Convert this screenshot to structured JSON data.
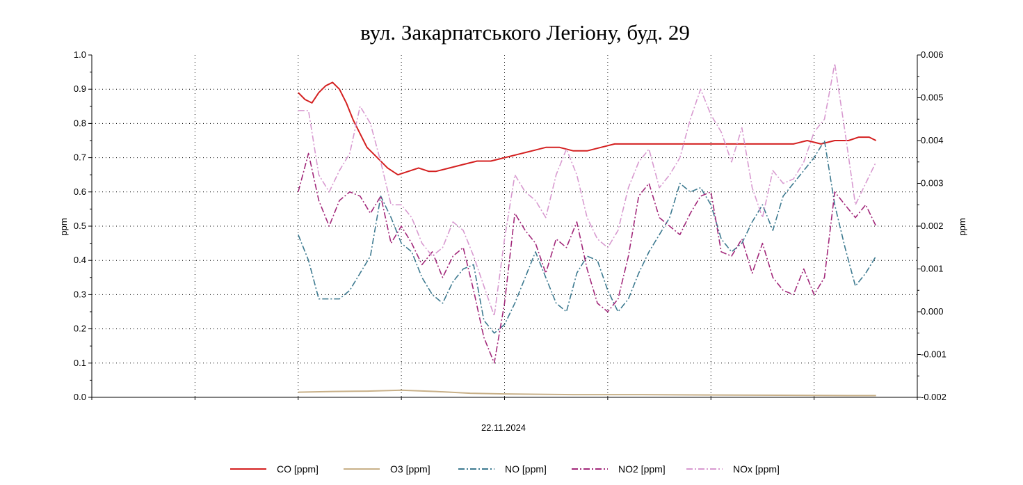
{
  "chart_data": {
    "type": "line",
    "title": "вул. Закарпатського Легіону, буд. 29",
    "xlabel": "22.11.2024",
    "ylabel_left": "ppm",
    "ylabel_right": "ppm",
    "ylim_left": [
      0,
      1
    ],
    "ylim_right": [
      -0.002,
      0.006
    ],
    "yticks_left": [
      "0.0",
      "0.1",
      "0.2",
      "0.3",
      "0.4",
      "0.5",
      "0.6",
      "0.7",
      "0.8",
      "0.9",
      "1.0"
    ],
    "yticks_right": [
      "-0.002",
      "-0.001",
      "0.000",
      "0.001",
      "0.002",
      "0.003",
      "0.004",
      "0.005",
      "0.006"
    ],
    "x_units": "hours",
    "x_range": [
      0,
      24
    ],
    "grid": true,
    "legend_position": "bottom",
    "series": [
      {
        "name": "CO [ppm]",
        "axis": "left",
        "color": "#d42020",
        "style": "solid",
        "x": [
          6.0,
          6.2,
          6.4,
          6.6,
          6.8,
          7.0,
          7.2,
          7.4,
          7.6,
          7.8,
          8.0,
          8.3,
          8.6,
          8.9,
          9.2,
          9.5,
          9.8,
          10.0,
          10.4,
          10.8,
          11.2,
          11.6,
          12.0,
          12.4,
          12.8,
          13.2,
          13.6,
          14.0,
          14.4,
          14.8,
          15.2,
          15.6,
          16.0,
          16.4,
          16.8,
          17.2,
          17.6,
          18.0,
          18.4,
          18.8,
          19.2,
          19.6,
          20.0,
          20.4,
          20.8,
          21.2,
          21.6,
          22.0,
          22.3,
          22.6,
          22.8
        ],
        "values": [
          0.89,
          0.87,
          0.86,
          0.89,
          0.91,
          0.92,
          0.9,
          0.86,
          0.81,
          0.77,
          0.73,
          0.7,
          0.67,
          0.65,
          0.66,
          0.67,
          0.66,
          0.66,
          0.67,
          0.68,
          0.69,
          0.69,
          0.7,
          0.71,
          0.72,
          0.73,
          0.73,
          0.72,
          0.72,
          0.73,
          0.74,
          0.74,
          0.74,
          0.74,
          0.74,
          0.74,
          0.74,
          0.74,
          0.74,
          0.74,
          0.74,
          0.74,
          0.74,
          0.74,
          0.75,
          0.74,
          0.75,
          0.75,
          0.76,
          0.76,
          0.75
        ]
      },
      {
        "name": "O3 [ppm]",
        "axis": "left",
        "color": "#c8b088",
        "style": "solid",
        "x": [
          6.0,
          7.0,
          8.0,
          9.0,
          10.0,
          11.0,
          12.0,
          14.0,
          16.0,
          18.0,
          20.0,
          22.0,
          22.8
        ],
        "values": [
          0.015,
          0.017,
          0.018,
          0.021,
          0.017,
          0.012,
          0.01,
          0.008,
          0.008,
          0.007,
          0.006,
          0.005,
          0.005
        ]
      },
      {
        "name": "NO [ppm]",
        "axis": "right",
        "color": "#3d7a90",
        "style": "dashdot",
        "x": [
          6.0,
          6.3,
          6.6,
          6.9,
          7.2,
          7.5,
          7.8,
          8.1,
          8.4,
          8.7,
          9.0,
          9.3,
          9.6,
          9.9,
          10.2,
          10.5,
          10.8,
          11.1,
          11.4,
          11.7,
          12.0,
          12.3,
          12.6,
          12.9,
          13.2,
          13.5,
          13.8,
          14.1,
          14.4,
          14.7,
          15.0,
          15.3,
          15.6,
          15.9,
          16.2,
          16.5,
          16.8,
          17.1,
          17.4,
          17.7,
          18.0,
          18.3,
          18.6,
          18.9,
          19.2,
          19.5,
          19.8,
          20.1,
          20.4,
          20.7,
          21.0,
          21.3,
          21.6,
          21.9,
          22.2,
          22.5,
          22.8
        ],
        "values": [
          0.0018,
          0.0012,
          0.0003,
          0.0003,
          0.0003,
          0.0005,
          0.0009,
          0.0013,
          0.0027,
          0.0022,
          0.0016,
          0.0014,
          0.0008,
          0.0004,
          0.0002,
          0.0007,
          0.001,
          0.0011,
          -0.0002,
          -0.0005,
          -0.0003,
          0.0002,
          0.0008,
          0.0014,
          0.0008,
          0.0002,
          0.0,
          0.0009,
          0.0013,
          0.0012,
          0.0005,
          0.0,
          0.0003,
          0.0009,
          0.0014,
          0.0018,
          0.0022,
          0.003,
          0.0028,
          0.0029,
          0.0025,
          0.0017,
          0.0014,
          0.0016,
          0.0021,
          0.0025,
          0.0019,
          0.0027,
          0.003,
          0.0033,
          0.0036,
          0.004,
          0.0025,
          0.0015,
          0.0006,
          0.0009,
          0.0013
        ]
      },
      {
        "name": "NO2 [ppm]",
        "axis": "right",
        "color": "#a2287a",
        "style": "dashdot",
        "x": [
          6.0,
          6.3,
          6.6,
          6.9,
          7.2,
          7.5,
          7.8,
          8.1,
          8.4,
          8.7,
          9.0,
          9.3,
          9.6,
          9.9,
          10.2,
          10.5,
          10.8,
          11.1,
          11.4,
          11.7,
          12.0,
          12.3,
          12.6,
          12.9,
          13.2,
          13.5,
          13.8,
          14.1,
          14.4,
          14.7,
          15.0,
          15.3,
          15.6,
          15.9,
          16.2,
          16.5,
          16.8,
          17.1,
          17.4,
          17.7,
          18.0,
          18.3,
          18.6,
          18.9,
          19.2,
          19.5,
          19.8,
          20.1,
          20.4,
          20.7,
          21.0,
          21.3,
          21.6,
          21.9,
          22.2,
          22.5,
          22.8
        ],
        "values": [
          0.0028,
          0.0037,
          0.0026,
          0.002,
          0.0026,
          0.0028,
          0.0027,
          0.0023,
          0.0027,
          0.0016,
          0.002,
          0.0016,
          0.0011,
          0.0014,
          0.0008,
          0.0013,
          0.0015,
          0.0005,
          -0.0006,
          -0.0012,
          0.0002,
          0.0023,
          0.0019,
          0.0016,
          0.0009,
          0.0017,
          0.0015,
          0.0021,
          0.001,
          0.0002,
          0.0,
          0.0003,
          0.0013,
          0.0027,
          0.003,
          0.0022,
          0.002,
          0.0018,
          0.0023,
          0.0027,
          0.0028,
          0.0014,
          0.0013,
          0.0017,
          0.0009,
          0.0016,
          0.0008,
          0.0005,
          0.0004,
          0.001,
          0.0004,
          0.0008,
          0.0028,
          0.0025,
          0.0022,
          0.0025,
          0.002
        ]
      },
      {
        "name": "NOx [ppm]",
        "axis": "right",
        "color": "#d89ad0",
        "style": "dashdot",
        "x": [
          6.0,
          6.3,
          6.6,
          6.9,
          7.2,
          7.5,
          7.8,
          8.1,
          8.4,
          8.7,
          9.0,
          9.3,
          9.6,
          9.9,
          10.2,
          10.5,
          10.8,
          11.1,
          11.4,
          11.7,
          12.0,
          12.3,
          12.6,
          12.9,
          13.2,
          13.5,
          13.8,
          14.1,
          14.4,
          14.7,
          15.0,
          15.3,
          15.6,
          15.9,
          16.2,
          16.5,
          16.8,
          17.1,
          17.4,
          17.7,
          18.0,
          18.3,
          18.6,
          18.9,
          19.2,
          19.5,
          19.8,
          20.1,
          20.4,
          20.7,
          21.0,
          21.3,
          21.6,
          21.9,
          22.2,
          22.5,
          22.8
        ],
        "values": [
          0.0047,
          0.0047,
          0.0032,
          0.0028,
          0.0033,
          0.0037,
          0.0048,
          0.0044,
          0.0035,
          0.0025,
          0.0025,
          0.0022,
          0.0016,
          0.0013,
          0.0015,
          0.0021,
          0.0019,
          0.0013,
          0.0006,
          -0.0001,
          0.0017,
          0.0032,
          0.0028,
          0.0026,
          0.0022,
          0.0032,
          0.0038,
          0.0032,
          0.0022,
          0.0017,
          0.0015,
          0.0019,
          0.0029,
          0.0035,
          0.0038,
          0.0029,
          0.0032,
          0.0036,
          0.0045,
          0.0052,
          0.0046,
          0.0042,
          0.0035,
          0.0043,
          0.0029,
          0.0022,
          0.0033,
          0.003,
          0.0031,
          0.0035,
          0.0042,
          0.0045,
          0.0058,
          0.0042,
          0.0025,
          0.003,
          0.0035
        ]
      }
    ]
  }
}
